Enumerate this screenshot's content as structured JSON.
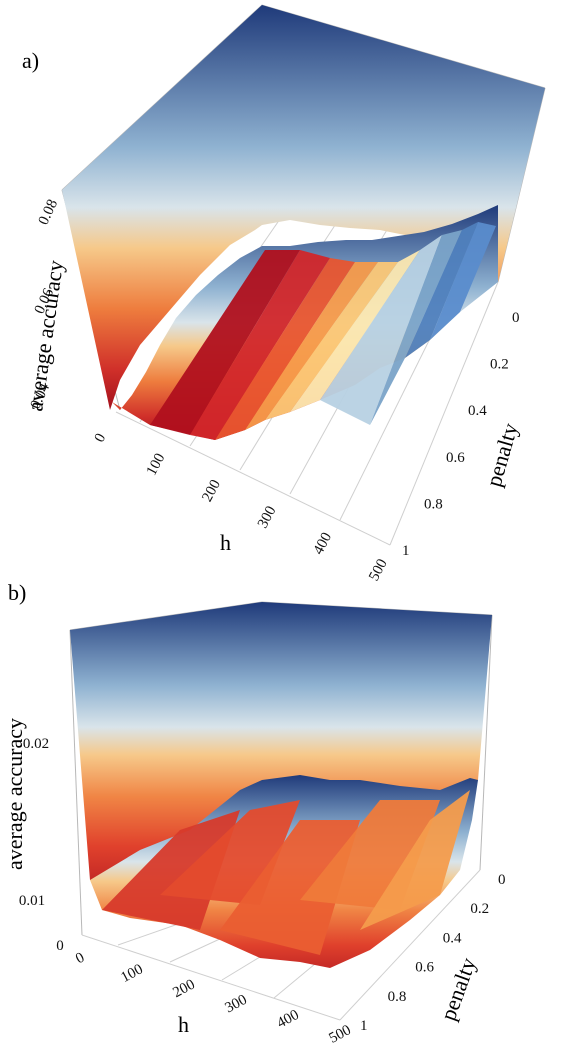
{
  "chart_data": [
    {
      "panel": "a)",
      "type": "surface",
      "xlabel": "h",
      "ylabel": "penalty",
      "zlabel": "average accuracy",
      "x_ticks": [
        "0",
        "100",
        "200",
        "300",
        "400",
        "500"
      ],
      "y_ticks": [
        "0",
        "0.2",
        "0.4",
        "0.6",
        "0.8",
        "1"
      ],
      "z_ticks": [
        "0.04",
        "0.06",
        "0.08"
      ],
      "xlim": [
        0,
        500
      ],
      "ylim": [
        0,
        1
      ],
      "zlim": [
        0.03,
        0.08
      ],
      "colormap": "RdYlBu (red = low, blue = high)",
      "colors": [
        "#1f3a7a",
        "#a9c6dd",
        "#fbe7b0",
        "#f59a4a",
        "#d93a2b",
        "#b0101d"
      ],
      "series": [
        {
          "h": 0,
          "values": [
            0.08,
            0.08,
            0.08,
            0.08,
            0.08,
            0.08
          ]
        },
        {
          "h": 50,
          "values": [
            0.038,
            0.036,
            0.035,
            0.034,
            0.034,
            0.034
          ]
        },
        {
          "h": 100,
          "values": [
            0.047,
            0.046,
            0.045,
            0.044,
            0.043,
            0.042
          ]
        },
        {
          "h": 150,
          "values": [
            0.049,
            0.048,
            0.046,
            0.045,
            0.044,
            0.043
          ]
        },
        {
          "h": 200,
          "values": [
            0.051,
            0.05,
            0.049,
            0.047,
            0.046,
            0.045
          ]
        },
        {
          "h": 250,
          "values": [
            0.055,
            0.054,
            0.053,
            0.052,
            0.051,
            0.05
          ]
        },
        {
          "h": 300,
          "values": [
            0.058,
            0.057,
            0.056,
            0.055,
            0.055,
            0.054
          ]
        },
        {
          "h": 350,
          "values": [
            0.062,
            0.061,
            0.06,
            0.059,
            0.058,
            0.057
          ]
        },
        {
          "h": 400,
          "values": [
            0.066,
            0.064,
            0.062,
            0.06,
            0.058,
            0.056
          ]
        },
        {
          "h": 450,
          "values": [
            0.07,
            0.068,
            0.066,
            0.063,
            0.061,
            0.059
          ]
        },
        {
          "h": 500,
          "values": [
            0.052,
            0.051,
            0.05,
            0.05,
            0.049,
            0.049
          ]
        }
      ]
    },
    {
      "panel": "b)",
      "type": "surface",
      "xlabel": "h",
      "ylabel": "penalty",
      "zlabel": "average accuracy",
      "x_ticks": [
        "0",
        "100",
        "200",
        "300",
        "400",
        "500"
      ],
      "y_ticks": [
        "0",
        "0.2",
        "0.4",
        "0.6",
        "0.8",
        "1"
      ],
      "z_ticks": [
        "0",
        "0.01",
        "0.02"
      ],
      "xlim": [
        0,
        500
      ],
      "ylim": [
        0,
        1
      ],
      "zlim": [
        0.005,
        0.028
      ],
      "colormap": "RdYlBu (red = low, blue = high)",
      "colors": [
        "#1f3a7a",
        "#a9c6dd",
        "#fbe7b0",
        "#f59a4a",
        "#d93a2b",
        "#b0101d"
      ],
      "series": [
        {
          "h": 0,
          "values": [
            0.028,
            0.028,
            0.028,
            0.028,
            0.028,
            0.028
          ]
        },
        {
          "h": 50,
          "values": [
            0.011,
            0.01,
            0.01,
            0.009,
            0.009,
            0.009
          ]
        },
        {
          "h": 100,
          "values": [
            0.013,
            0.012,
            0.011,
            0.01,
            0.01,
            0.009
          ]
        },
        {
          "h": 150,
          "values": [
            0.014,
            0.013,
            0.012,
            0.011,
            0.01,
            0.01
          ]
        },
        {
          "h": 200,
          "values": [
            0.015,
            0.014,
            0.013,
            0.012,
            0.011,
            0.01
          ]
        },
        {
          "h": 250,
          "values": [
            0.014,
            0.014,
            0.013,
            0.012,
            0.011,
            0.011
          ]
        },
        {
          "h": 300,
          "values": [
            0.015,
            0.014,
            0.013,
            0.012,
            0.012,
            0.011
          ]
        },
        {
          "h": 350,
          "values": [
            0.014,
            0.013,
            0.013,
            0.012,
            0.011,
            0.011
          ]
        },
        {
          "h": 400,
          "values": [
            0.015,
            0.014,
            0.013,
            0.012,
            0.012,
            0.011
          ]
        },
        {
          "h": 450,
          "values": [
            0.014,
            0.013,
            0.012,
            0.012,
            0.011,
            0.011
          ]
        },
        {
          "h": 500,
          "values": [
            0.018,
            0.016,
            0.014,
            0.013,
            0.012,
            0.012
          ]
        }
      ]
    }
  ]
}
